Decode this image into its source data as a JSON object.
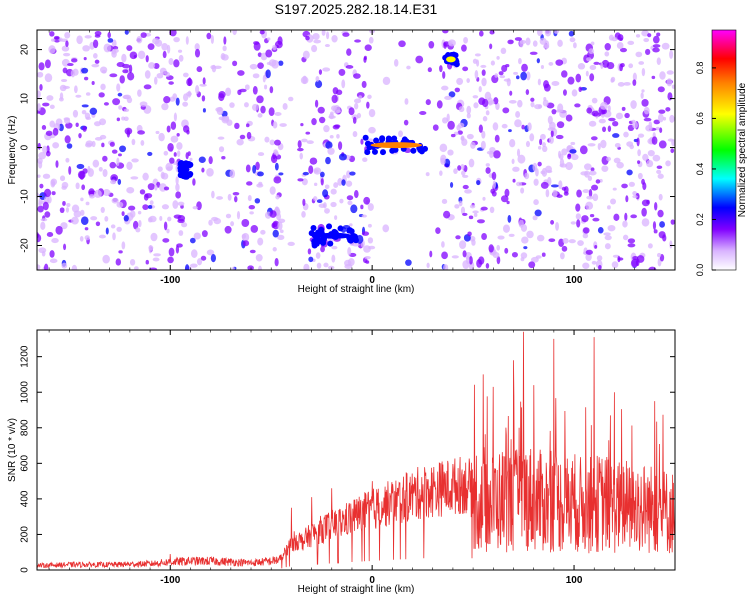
{
  "title": "S197.2025.282.18.14.E31",
  "chart_data": [
    {
      "type": "heatmap",
      "xlabel": "Height of straight line (km)",
      "ylabel": "Frequency (Hz)",
      "xlim": [
        -166,
        150
      ],
      "ylim": [
        -25,
        24
      ],
      "xticks": [
        -100,
        0,
        100
      ],
      "yticks": [
        -20,
        -10,
        0,
        10,
        20
      ],
      "colorbar": {
        "label": "Normalized spectral amplitude",
        "range": [
          0,
          0.95
        ],
        "ticks": [
          0.0,
          0.2,
          0.4,
          0.6,
          0.8
        ],
        "colormap": [
          "#ffffff",
          "#d9b3ff",
          "#8000ff",
          "#0000ff",
          "#00ffff",
          "#00ff00",
          "#ffff00",
          "#ff8000",
          "#ff0000",
          "#ff00ff"
        ]
      },
      "features": [
        {
          "x": [
            -30,
            -8
          ],
          "y": [
            -20,
            -16
          ],
          "amplitude": 0.3
        },
        {
          "x": [
            -4,
            28
          ],
          "y": [
            -1,
            2
          ],
          "amplitude": 0.8
        },
        {
          "x": [
            36,
            42
          ],
          "y": [
            17,
            19
          ],
          "amplitude": 0.7
        },
        {
          "x": [
            -95,
            -90
          ],
          "y": [
            -6,
            -3
          ],
          "amplitude": 0.2
        }
      ]
    },
    {
      "type": "line",
      "xlabel": "Height of straight line (km)",
      "ylabel": "SNR (10 * v/v)",
      "xlim": [
        -166,
        150
      ],
      "ylim": [
        0,
        1350
      ],
      "xticks": [
        -100,
        0,
        100
      ],
      "yticks": [
        0,
        200,
        400,
        600,
        800,
        1000,
        1200
      ],
      "color": "#e83030",
      "series": [
        {
          "x": [
            -166,
            -150,
            -130,
            -110,
            -100,
            -90,
            -80,
            -70,
            -60,
            -55,
            -50,
            -45,
            -42,
            -38,
            -35,
            -30,
            -25,
            -20,
            -15,
            -10,
            -5,
            0,
            5,
            10,
            15,
            20,
            25,
            30,
            35,
            40,
            45,
            48,
            52,
            55,
            60,
            65,
            70,
            75,
            80,
            85,
            90,
            95,
            100,
            105,
            110,
            115,
            120,
            125,
            130,
            135,
            140,
            145,
            150
          ],
          "y": [
            25,
            30,
            30,
            35,
            45,
            50,
            50,
            45,
            40,
            45,
            50,
            60,
            120,
            170,
            160,
            200,
            230,
            250,
            270,
            300,
            320,
            340,
            360,
            380,
            400,
            420,
            440,
            450,
            460,
            470,
            480,
            470,
            400,
            350,
            380,
            400,
            380,
            420,
            400,
            380,
            390,
            370,
            380,
            360,
            370,
            380,
            350,
            360,
            340,
            350,
            340,
            330,
            320
          ],
          "peaks": [
            [
              -100,
              90
            ],
            [
              -40,
              350
            ],
            [
              -30,
              410
            ],
            [
              -20,
              460
            ],
            [
              0,
              500
            ],
            [
              55,
              1100
            ],
            [
              60,
              1030
            ],
            [
              70,
              1180
            ],
            [
              75,
              1340
            ],
            [
              80,
              1040
            ],
            [
              90,
              1300
            ],
            [
              110,
              1310
            ],
            [
              120,
              1000
            ],
            [
              140,
              950
            ]
          ]
        }
      ]
    }
  ]
}
